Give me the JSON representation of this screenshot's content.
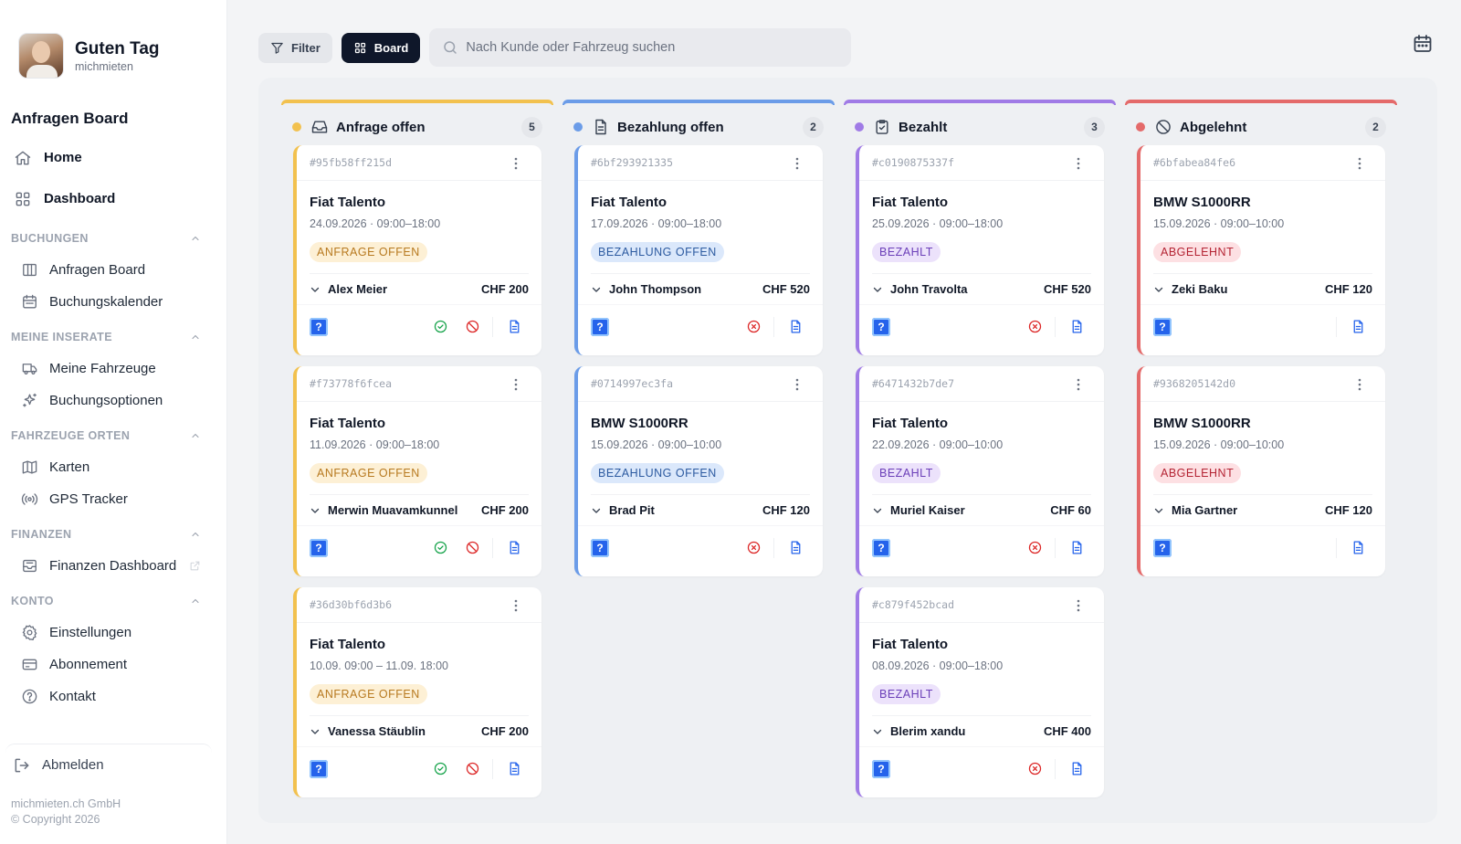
{
  "sidebar": {
    "greeting": "Guten Tag",
    "company": "michmieten",
    "board_title": "Anfragen Board",
    "top_items": [
      {
        "label": "Home",
        "icon": "home-icon"
      },
      {
        "label": "Dashboard",
        "icon": "grid-icon"
      }
    ],
    "sections": [
      {
        "title": "BUCHUNGEN",
        "items": [
          {
            "label": "Anfragen Board",
            "icon": "columns-icon"
          },
          {
            "label": "Buchungskalender",
            "icon": "calendar-icon"
          }
        ]
      },
      {
        "title": "MEINE INSERATE",
        "items": [
          {
            "label": "Meine Fahrzeuge",
            "icon": "truck-icon"
          },
          {
            "label": "Buchungsoptionen",
            "icon": "sparkles-icon"
          }
        ]
      },
      {
        "title": "FAHRZEUGE ORTEN",
        "items": [
          {
            "label": "Karten",
            "icon": "map-icon"
          },
          {
            "label": "GPS Tracker",
            "icon": "radio-icon"
          }
        ]
      },
      {
        "title": "FINANZEN",
        "items": [
          {
            "label": "Finanzen Dashboard",
            "icon": "inbox-icon"
          }
        ]
      },
      {
        "title": "KONTO",
        "items": [
          {
            "label": "Einstellungen",
            "icon": "gear-icon"
          },
          {
            "label": "Abonnement",
            "icon": "credit-card-icon"
          },
          {
            "label": "Kontakt",
            "icon": "help-circle-icon"
          }
        ]
      }
    ],
    "logout": "Abmelden",
    "footer_company": "michmieten.ch GmbH",
    "footer_copyright": "© Copyright 2026"
  },
  "toolbar": {
    "filter_label": "Filter",
    "board_label": "Board",
    "search_placeholder": "Nach Kunde oder Fahrzeug suchen"
  },
  "columns": [
    {
      "title": "Anfrage offen",
      "count": "5",
      "color": "#f2c14e",
      "icon": "inbox-icon",
      "badge_bg": "#fdf0d5",
      "badge_fg": "#b7791f",
      "cards": [
        {
          "id": "#95fb58ff215d",
          "vehicle": "Fiat Talento",
          "dates": "24.09.2026 · 09:00–18:00",
          "status": "ANFRAGE OFFEN",
          "customer": "Alex Meier",
          "price": "CHF 200"
        },
        {
          "id": "#f73778f6fcea",
          "vehicle": "Fiat Talento",
          "dates": "11.09.2026 · 09:00–18:00",
          "status": "ANFRAGE OFFEN",
          "customer": "Merwin Muavamkunnel",
          "price": "CHF 200"
        },
        {
          "id": "#36d30bf6d3b6",
          "vehicle": "Fiat Talento",
          "dates": "10.09. 09:00 – 11.09. 18:00",
          "status": "ANFRAGE OFFEN",
          "customer": "Vanessa Stäublin",
          "price": "CHF 200"
        }
      ]
    },
    {
      "title": "Bezahlung offen",
      "count": "2",
      "color": "#6b9ce8",
      "icon": "file-icon",
      "badge_bg": "#dbe8fb",
      "badge_fg": "#2c5aa0",
      "cards": [
        {
          "id": "#6bf293921335",
          "vehicle": "Fiat Talento",
          "dates": "17.09.2026 · 09:00–18:00",
          "status": "BEZAHLUNG OFFEN",
          "customer": "John Thompson",
          "price": "CHF 520"
        },
        {
          "id": "#0714997ec3fa",
          "vehicle": "BMW S1000RR",
          "dates": "15.09.2026 · 09:00–10:00",
          "status": "BEZAHLUNG OFFEN",
          "customer": "Brad Pit",
          "price": "CHF 120"
        }
      ]
    },
    {
      "title": "Bezahlt",
      "count": "3",
      "color": "#a07be6",
      "icon": "clipboard-check-icon",
      "badge_bg": "#ece2fb",
      "badge_fg": "#6b3fb8",
      "cards": [
        {
          "id": "#c0190875337f",
          "vehicle": "Fiat Talento",
          "dates": "25.09.2026 · 09:00–18:00",
          "status": "BEZAHLT",
          "customer": "John Travolta",
          "price": "CHF 520"
        },
        {
          "id": "#6471432b7de7",
          "vehicle": "Fiat Talento",
          "dates": "22.09.2026 · 09:00–10:00",
          "status": "BEZAHLT",
          "customer": "Muriel Kaiser",
          "price": "CHF 60"
        },
        {
          "id": "#c879f452bcad",
          "vehicle": "Fiat Talento",
          "dates": "08.09.2026 · 09:00–18:00",
          "status": "BEZAHLT",
          "customer": "Blerim xandu",
          "price": "CHF 400"
        }
      ]
    },
    {
      "title": "Abgelehnt",
      "count": "2",
      "color": "#e46a6a",
      "icon": "ban-icon",
      "badge_bg": "#fde0e3",
      "badge_fg": "#b42333",
      "cards": [
        {
          "id": "#6bfabea84fe6",
          "vehicle": "BMW S1000RR",
          "dates": "15.09.2026 · 09:00–10:00",
          "status": "ABGELEHNT",
          "customer": "Zeki Baku",
          "price": "CHF 120"
        },
        {
          "id": "#9368205142d0",
          "vehicle": "BMW S1000RR",
          "dates": "15.09.2026 · 09:00–10:00",
          "status": "ABGELEHNT",
          "customer": "Mia Gartner",
          "price": "CHF 120"
        }
      ]
    }
  ]
}
